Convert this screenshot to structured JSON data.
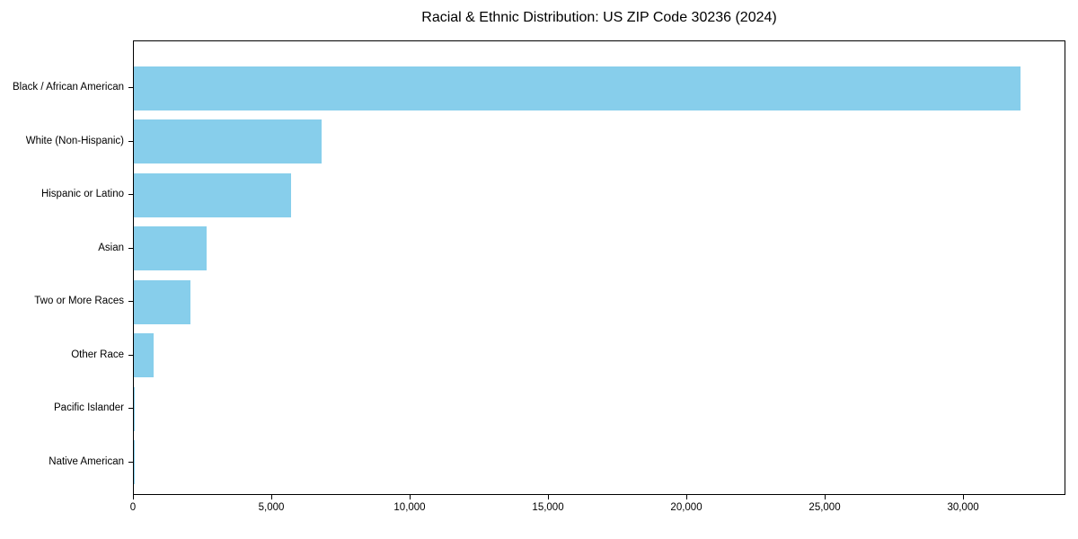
{
  "chart_data": {
    "type": "bar",
    "orientation": "horizontal",
    "title": "Racial & Ethnic Distribution: US ZIP Code 30236 (2024)",
    "categories": [
      "Black / African American",
      "White (Non-Hispanic)",
      "Hispanic or Latino",
      "Asian",
      "Two or More Races",
      "Other Race",
      "Pacific Islander",
      "Native American"
    ],
    "values": [
      32100,
      6800,
      5700,
      2650,
      2050,
      720,
      40,
      15
    ],
    "xlabel": "",
    "ylabel": "",
    "xlim": [
      0,
      33700
    ],
    "xticks": [
      0,
      5000,
      10000,
      15000,
      20000,
      25000,
      30000
    ],
    "xtick_labels": [
      "0",
      "5,000",
      "10,000",
      "15,000",
      "20,000",
      "25,000",
      "30,000"
    ],
    "bar_color": "#87CEEB",
    "axis_color": "#000000",
    "background_color": "#ffffff",
    "grid": false,
    "legend": null
  }
}
